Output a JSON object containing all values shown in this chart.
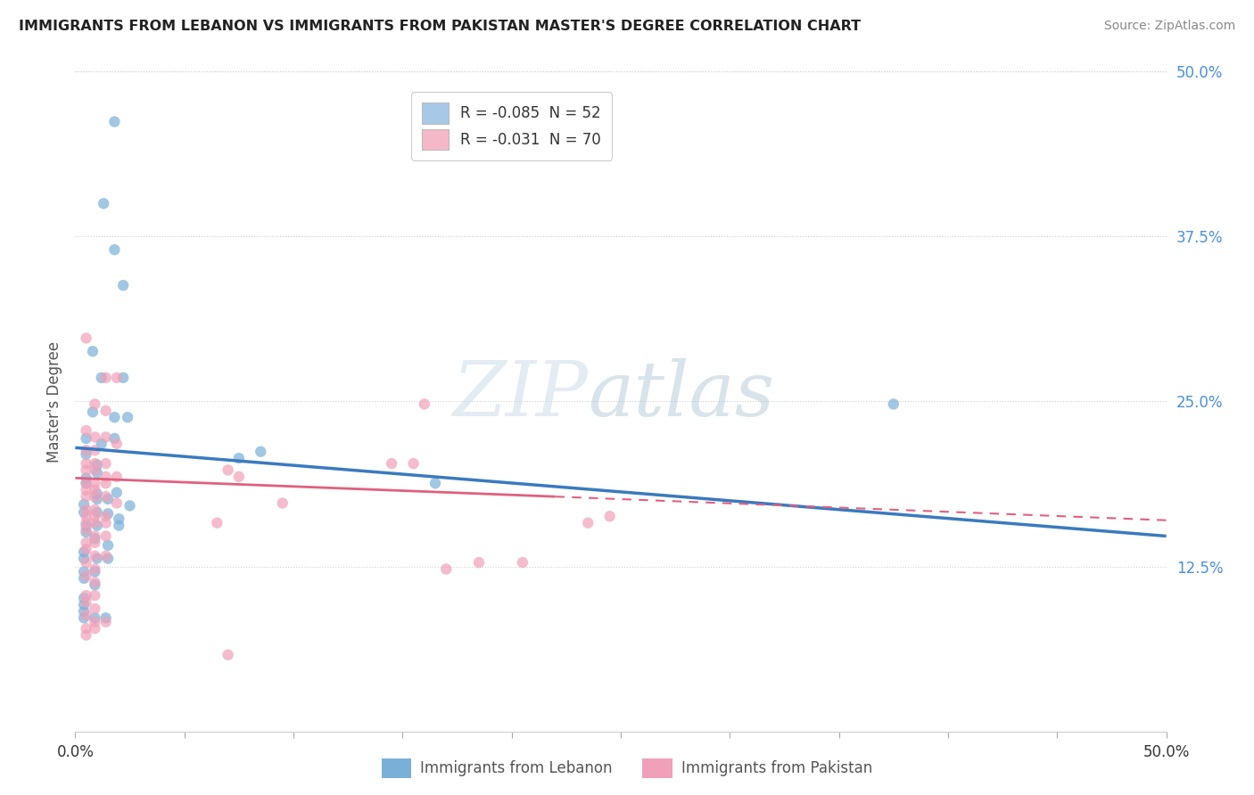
{
  "title": "IMMIGRANTS FROM LEBANON VS IMMIGRANTS FROM PAKISTAN MASTER'S DEGREE CORRELATION CHART",
  "source_text": "Source: ZipAtlas.com",
  "ylabel": "Master's Degree",
  "xlim": [
    0.0,
    0.5
  ],
  "ylim": [
    0.0,
    0.5
  ],
  "ytick_right_labels": [
    "50.0%",
    "37.5%",
    "25.0%",
    "12.5%"
  ],
  "ytick_right_values": [
    0.5,
    0.375,
    0.25,
    0.125
  ],
  "legend_entries": [
    {
      "label": "R = -0.085  N = 52",
      "color": "#a8c8e8"
    },
    {
      "label": "R = -0.031  N = 70",
      "color": "#f5b8c8"
    }
  ],
  "lebanon_color": "#7ab0d8",
  "pakistan_color": "#f0a0b8",
  "lebanon_scatter": [
    [
      0.018,
      0.462
    ],
    [
      0.013,
      0.4
    ],
    [
      0.018,
      0.365
    ],
    [
      0.022,
      0.338
    ],
    [
      0.008,
      0.288
    ],
    [
      0.012,
      0.268
    ],
    [
      0.022,
      0.268
    ],
    [
      0.008,
      0.242
    ],
    [
      0.018,
      0.238
    ],
    [
      0.024,
      0.238
    ],
    [
      0.018,
      0.222
    ],
    [
      0.012,
      0.218
    ],
    [
      0.005,
      0.222
    ],
    [
      0.005,
      0.21
    ],
    [
      0.01,
      0.202
    ],
    [
      0.01,
      0.196
    ],
    [
      0.005,
      0.188
    ],
    [
      0.005,
      0.192
    ],
    [
      0.01,
      0.18
    ],
    [
      0.015,
      0.176
    ],
    [
      0.019,
      0.181
    ],
    [
      0.01,
      0.176
    ],
    [
      0.004,
      0.172
    ],
    [
      0.004,
      0.166
    ],
    [
      0.01,
      0.166
    ],
    [
      0.015,
      0.165
    ],
    [
      0.02,
      0.161
    ],
    [
      0.025,
      0.171
    ],
    [
      0.005,
      0.156
    ],
    [
      0.01,
      0.156
    ],
    [
      0.02,
      0.156
    ],
    [
      0.005,
      0.151
    ],
    [
      0.009,
      0.146
    ],
    [
      0.015,
      0.141
    ],
    [
      0.004,
      0.136
    ],
    [
      0.004,
      0.131
    ],
    [
      0.01,
      0.131
    ],
    [
      0.015,
      0.131
    ],
    [
      0.004,
      0.121
    ],
    [
      0.009,
      0.121
    ],
    [
      0.004,
      0.116
    ],
    [
      0.009,
      0.111
    ],
    [
      0.004,
      0.101
    ],
    [
      0.004,
      0.096
    ],
    [
      0.004,
      0.091
    ],
    [
      0.004,
      0.086
    ],
    [
      0.009,
      0.086
    ],
    [
      0.014,
      0.086
    ],
    [
      0.075,
      0.207
    ],
    [
      0.085,
      0.212
    ],
    [
      0.165,
      0.188
    ],
    [
      0.375,
      0.248
    ]
  ],
  "pakistan_scatter": [
    [
      0.005,
      0.298
    ],
    [
      0.014,
      0.268
    ],
    [
      0.019,
      0.268
    ],
    [
      0.009,
      0.248
    ],
    [
      0.014,
      0.243
    ],
    [
      0.16,
      0.248
    ],
    [
      0.005,
      0.228
    ],
    [
      0.009,
      0.223
    ],
    [
      0.014,
      0.223
    ],
    [
      0.019,
      0.218
    ],
    [
      0.005,
      0.213
    ],
    [
      0.009,
      0.213
    ],
    [
      0.005,
      0.203
    ],
    [
      0.009,
      0.203
    ],
    [
      0.014,
      0.203
    ],
    [
      0.005,
      0.198
    ],
    [
      0.009,
      0.198
    ],
    [
      0.014,
      0.193
    ],
    [
      0.019,
      0.193
    ],
    [
      0.005,
      0.188
    ],
    [
      0.009,
      0.188
    ],
    [
      0.014,
      0.188
    ],
    [
      0.005,
      0.183
    ],
    [
      0.009,
      0.183
    ],
    [
      0.005,
      0.178
    ],
    [
      0.009,
      0.178
    ],
    [
      0.014,
      0.178
    ],
    [
      0.019,
      0.173
    ],
    [
      0.005,
      0.168
    ],
    [
      0.009,
      0.168
    ],
    [
      0.005,
      0.163
    ],
    [
      0.009,
      0.163
    ],
    [
      0.014,
      0.163
    ],
    [
      0.005,
      0.158
    ],
    [
      0.009,
      0.158
    ],
    [
      0.014,
      0.158
    ],
    [
      0.005,
      0.153
    ],
    [
      0.009,
      0.148
    ],
    [
      0.014,
      0.148
    ],
    [
      0.005,
      0.143
    ],
    [
      0.009,
      0.143
    ],
    [
      0.005,
      0.138
    ],
    [
      0.009,
      0.133
    ],
    [
      0.014,
      0.133
    ],
    [
      0.005,
      0.128
    ],
    [
      0.009,
      0.123
    ],
    [
      0.005,
      0.118
    ],
    [
      0.009,
      0.113
    ],
    [
      0.005,
      0.103
    ],
    [
      0.009,
      0.103
    ],
    [
      0.005,
      0.098
    ],
    [
      0.009,
      0.093
    ],
    [
      0.005,
      0.088
    ],
    [
      0.009,
      0.083
    ],
    [
      0.014,
      0.083
    ],
    [
      0.005,
      0.078
    ],
    [
      0.009,
      0.078
    ],
    [
      0.005,
      0.073
    ],
    [
      0.065,
      0.158
    ],
    [
      0.095,
      0.173
    ],
    [
      0.075,
      0.193
    ],
    [
      0.07,
      0.198
    ],
    [
      0.145,
      0.203
    ],
    [
      0.155,
      0.203
    ],
    [
      0.07,
      0.058
    ],
    [
      0.17,
      0.123
    ],
    [
      0.185,
      0.128
    ],
    [
      0.205,
      0.128
    ],
    [
      0.235,
      0.158
    ],
    [
      0.245,
      0.163
    ]
  ],
  "lebanon_line": {
    "x0": 0.0,
    "x1": 0.5,
    "y0": 0.215,
    "y1": 0.148
  },
  "pakistan_line": {
    "x0": 0.0,
    "x1": 0.5,
    "y0": 0.192,
    "y1": 0.16
  },
  "pakistan_line_solid_end": 0.22,
  "watermark_zip": "ZIP",
  "watermark_atlas": "atlas",
  "background_color": "#ffffff",
  "grid_color": "#d0d0d0",
  "title_color": "#222222",
  "right_axis_color": "#4a90d9"
}
